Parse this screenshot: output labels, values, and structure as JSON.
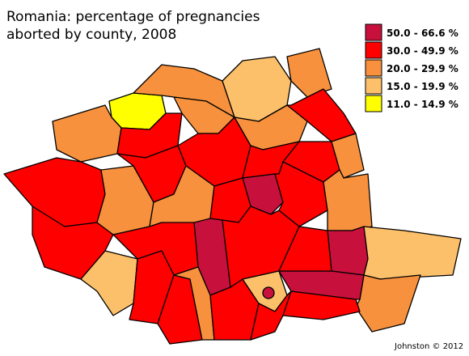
{
  "title": [
    "Romania:  percentage of pregnancies",
    "aborted by county, 2008"
  ],
  "legend": [
    {
      "label": "50.0 - 66.6 %",
      "color": "#c8103c"
    },
    {
      "label": "30.0 - 49.9 %",
      "color": "#ff0000"
    },
    {
      "label": "20.0 - 29.9 %",
      "color": "#f7913d"
    },
    {
      "label": "15.0 - 19.9 %",
      "color": "#fdc06a"
    },
    {
      "label": "11.0 - 14.9 %",
      "color": "#ffff00"
    }
  ],
  "credit": "Johnston © 2012"
}
